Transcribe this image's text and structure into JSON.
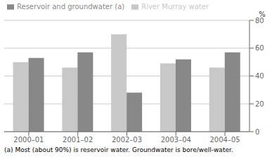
{
  "chart_data": {
    "type": "bar",
    "categories": [
      "2000–01",
      "2001–02",
      "2002–03",
      "2003–04",
      "2004–05"
    ],
    "series": [
      {
        "name": "River Murray water",
        "color": "#c8c8c8",
        "values": [
          50,
          46,
          70,
          49,
          46
        ]
      },
      {
        "name": "Reservoir and groundwater (a)",
        "color": "#888888",
        "values": [
          53,
          57,
          28,
          52,
          57
        ]
      }
    ],
    "y_label": "%",
    "annotations": [
      "(a) Most (about 90%) is reservoir water. Groundwater is bore/well-water."
    ],
    "ylim": [
      0,
      80
    ],
    "yticks": [
      0,
      20,
      40,
      60,
      80
    ],
    "grid": true,
    "legend": "upper left"
  }
}
